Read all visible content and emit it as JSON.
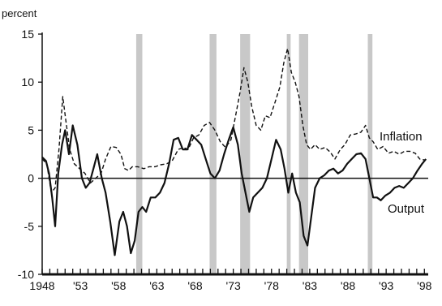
{
  "chart_data": {
    "type": "line",
    "ylabel": "percent",
    "xlabel": "",
    "ylim": [
      -10,
      15
    ],
    "xlim": [
      1948,
      1998.5
    ],
    "y_ticks": [
      15,
      10,
      5,
      0,
      -5,
      -10
    ],
    "x_tick_labels": [
      "1948",
      "'53",
      "'58",
      "'63",
      "'68",
      "'73",
      "'78",
      "'83",
      "'88",
      "'93",
      "'98"
    ],
    "x_tick_values": [
      1948,
      1953,
      1958,
      1963,
      1968,
      1973,
      1978,
      1983,
      1988,
      1993,
      1998
    ],
    "recessions": [
      [
        1960.3,
        1961.1
      ],
      [
        1969.9,
        1970.8
      ],
      [
        1973.9,
        1975.2
      ],
      [
        1980.0,
        1980.5
      ],
      [
        1981.6,
        1982.8
      ],
      [
        1990.6,
        1991.2
      ]
    ],
    "series": [
      {
        "name": "Inflation",
        "style": "dashed",
        "color": "#111111",
        "x": [
          1948,
          1948.6,
          1949.2,
          1949.7,
          1950.2,
          1950.7,
          1951.1,
          1951.6,
          1952.2,
          1952.9,
          1953.6,
          1954.3,
          1955.0,
          1955.7,
          1956.3,
          1957.0,
          1957.7,
          1958.3,
          1958.8,
          1959.3,
          1959.8,
          1960.5,
          1961.3,
          1962.0,
          1962.8,
          1963.5,
          1964.3,
          1965.0,
          1965.8,
          1966.5,
          1967.1,
          1967.8,
          1968.5,
          1969.2,
          1969.9,
          1970.6,
          1971.3,
          1972.0,
          1972.7,
          1973.3,
          1973.9,
          1974.4,
          1974.9,
          1975.4,
          1976.0,
          1976.6,
          1977.2,
          1977.8,
          1978.5,
          1979.1,
          1979.6,
          1980.1,
          1980.6,
          1981.1,
          1981.6,
          1982.1,
          1982.6,
          1983.1,
          1983.7,
          1984.3,
          1985.0,
          1985.7,
          1986.3,
          1987.0,
          1987.6,
          1988.3,
          1989.0,
          1989.7,
          1990.3,
          1990.8,
          1991.3,
          1991.9,
          1992.6,
          1993.3,
          1994.0,
          1994.7,
          1995.4,
          1996.1,
          1996.8,
          1997.4,
          1998.0
        ],
        "values": [
          2.0,
          1.5,
          -1.5,
          -1.0,
          3.0,
          8.5,
          6.0,
          3.0,
          1.5,
          1.0,
          0.5,
          -0.5,
          0.0,
          0.5,
          2.0,
          3.3,
          3.2,
          2.5,
          1.0,
          0.8,
          1.2,
          1.2,
          1.0,
          1.2,
          1.2,
          1.4,
          1.5,
          1.8,
          3.0,
          3.2,
          3.0,
          4.2,
          4.5,
          5.5,
          5.8,
          5.0,
          3.8,
          3.2,
          4.0,
          6.5,
          9.0,
          11.5,
          10.0,
          7.5,
          5.5,
          5.0,
          6.5,
          6.3,
          8.0,
          9.5,
          12.0,
          13.5,
          11.0,
          10.0,
          8.5,
          5.5,
          3.5,
          3.0,
          3.5,
          3.0,
          3.2,
          2.7,
          2.0,
          3.0,
          3.5,
          4.5,
          4.6,
          4.8,
          5.5,
          4.2,
          3.8,
          3.0,
          3.3,
          2.6,
          2.8,
          2.5,
          2.8,
          2.8,
          2.6,
          2.0,
          1.9
        ]
      },
      {
        "name": "Output",
        "style": "solid",
        "color": "#111111",
        "x": [
          1948,
          1948.5,
          1948.9,
          1949.3,
          1949.7,
          1950.1,
          1950.6,
          1951.0,
          1951.5,
          1952.0,
          1952.6,
          1953.2,
          1953.7,
          1954.2,
          1954.7,
          1955.2,
          1955.8,
          1956.3,
          1956.9,
          1957.5,
          1958.1,
          1958.6,
          1959.1,
          1959.6,
          1960.1,
          1960.6,
          1961.1,
          1961.6,
          1962.2,
          1962.8,
          1963.4,
          1964.0,
          1964.6,
          1965.2,
          1965.8,
          1966.4,
          1967.0,
          1967.6,
          1968.2,
          1968.8,
          1969.4,
          1970.0,
          1970.6,
          1971.2,
          1971.8,
          1972.4,
          1973.0,
          1973.6,
          1974.1,
          1974.6,
          1975.1,
          1975.6,
          1976.2,
          1976.8,
          1977.4,
          1978.0,
          1978.6,
          1979.2,
          1979.7,
          1980.2,
          1980.7,
          1981.2,
          1981.7,
          1982.2,
          1982.7,
          1983.2,
          1983.7,
          1984.3,
          1984.9,
          1985.5,
          1986.1,
          1986.7,
          1987.3,
          1987.9,
          1988.5,
          1989.1,
          1989.7,
          1990.3,
          1990.8,
          1991.3,
          1991.8,
          1992.3,
          1992.9,
          1993.5,
          1994.1,
          1994.7,
          1995.3,
          1995.9,
          1996.5,
          1997.1,
          1997.7,
          1998.2
        ],
        "values": [
          2.2,
          1.8,
          0.5,
          -2.0,
          -5.0,
          0.5,
          3.5,
          5.0,
          2.5,
          5.5,
          3.5,
          0.0,
          -1.0,
          -0.5,
          1.0,
          2.5,
          0.0,
          -1.5,
          -4.5,
          -8.0,
          -4.5,
          -3.5,
          -5.0,
          -7.8,
          -6.5,
          -3.5,
          -3.0,
          -3.5,
          -2.0,
          -2.0,
          -1.5,
          -0.5,
          1.5,
          4.0,
          4.2,
          3.0,
          3.0,
          4.5,
          4.0,
          3.5,
          2.0,
          0.5,
          0.0,
          0.8,
          2.5,
          4.0,
          5.3,
          3.5,
          0.5,
          -1.5,
          -3.5,
          -2.0,
          -1.5,
          -1.0,
          0.0,
          2.0,
          4.0,
          3.0,
          1.0,
          -1.5,
          0.5,
          -1.5,
          -2.5,
          -6.0,
          -7.0,
          -4.0,
          -1.0,
          0.0,
          0.3,
          0.8,
          1.0,
          0.5,
          0.8,
          1.5,
          2.0,
          2.5,
          2.6,
          2.0,
          0.0,
          -2.0,
          -2.0,
          -2.3,
          -1.8,
          -1.5,
          -1.0,
          -0.8,
          -1.0,
          -0.5,
          0.0,
          0.8,
          1.5,
          2.0
        ]
      }
    ]
  }
}
